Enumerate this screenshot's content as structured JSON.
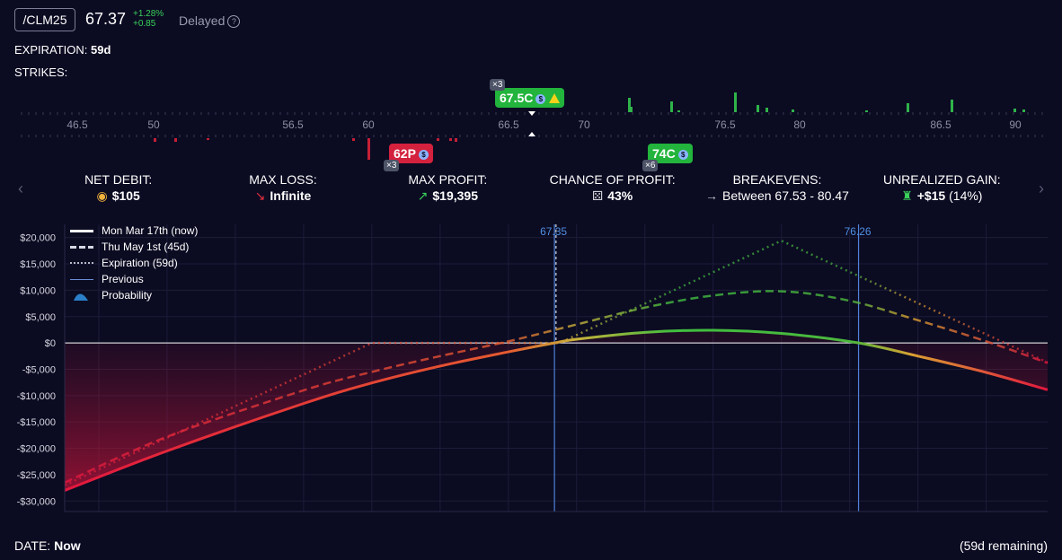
{
  "header": {
    "ticker": "/CLM25",
    "price": "67.37",
    "change_pct": "+1.28%",
    "change_abs": "+0.85",
    "delayed": "Delayed",
    "expiration_label": "EXPIRATION:",
    "expiration_value": "59d",
    "strikes_label": "STRIKES:"
  },
  "strike_ruler": {
    "ticks": [
      "46.5",
      "50",
      "56.5",
      "60",
      "66.5",
      "70",
      "76.5",
      "80",
      "86.5",
      "90"
    ],
    "badges": [
      {
        "label": "67.5C",
        "qty": "×3",
        "type": "call"
      },
      {
        "label": "62P",
        "qty": "×3",
        "type": "put"
      },
      {
        "label": "74C",
        "qty": "×6",
        "type": "call"
      }
    ]
  },
  "stats": [
    {
      "title": "NET DEBIT:",
      "value": "$105",
      "icon": "coins-icon"
    },
    {
      "title": "MAX LOSS:",
      "value": "Infinite",
      "icon": "arrow-down-right-icon"
    },
    {
      "title": "MAX PROFIT:",
      "value": "$19,395",
      "icon": "arrow-up-right-icon"
    },
    {
      "title": "CHANCE OF PROFIT:",
      "value": "43%",
      "icon": "dice-icon"
    },
    {
      "title": "BREAKEVENS:",
      "value": "Between 67.53 - 80.47",
      "icon": "arrow-right-icon"
    },
    {
      "title": "UNREALIZED GAIN:",
      "value": "+$15",
      "value_suffix": "(14%)",
      "icon": "money-bag-icon"
    }
  ],
  "legend": [
    {
      "label": "Mon Mar 17th (now)",
      "style": "solid"
    },
    {
      "label": "Thu May 1st (45d)",
      "style": "dashed"
    },
    {
      "label": "Expiration (59d)",
      "style": "dotted"
    },
    {
      "label": "Previous",
      "style": "line"
    },
    {
      "label": "Probability",
      "style": "area"
    }
  ],
  "chart_data": {
    "type": "line",
    "xlim": [
      53,
      81.8
    ],
    "ylim": [
      -32000,
      22500
    ],
    "x_ticks": [
      54,
      56,
      58,
      60,
      62,
      64,
      66,
      68,
      70,
      72,
      74,
      76,
      78,
      80
    ],
    "y_ticks": [
      20000,
      15000,
      10000,
      5000,
      0,
      -5000,
      -10000,
      -15000,
      -20000,
      -25000,
      -30000
    ],
    "y_tick_labels": [
      "$20,000",
      "$15,000",
      "$10,000",
      "$5,000",
      "$0",
      "-$5,000",
      "-$10,000",
      "-$15,000",
      "-$20,000",
      "-$25,000",
      "-$30,000"
    ],
    "markers": [
      {
        "x": 67.35,
        "label": "67.35"
      },
      {
        "x": 76.26,
        "label": "76.26"
      }
    ],
    "series": [
      {
        "name": "Mon Mar 17th (now)",
        "style": "solid",
        "x": [
          53,
          56,
          60,
          62,
          64,
          66,
          67.35,
          68,
          70,
          72,
          74,
          76.26,
          78,
          80,
          81.8
        ],
        "y": [
          -28000,
          -20500,
          -11500,
          -7600,
          -4400,
          -1700,
          0,
          700,
          2000,
          2400,
          1800,
          0,
          -2500,
          -5600,
          -8900
        ]
      },
      {
        "name": "Thu May 1st (45d)",
        "style": "dashed",
        "x": [
          53,
          56,
          60,
          62,
          64,
          66,
          68,
          70,
          72,
          74,
          76,
          78,
          80,
          81.8
        ],
        "y": [
          -26500,
          -17800,
          -9000,
          -5500,
          -2500,
          300,
          3500,
          6700,
          9000,
          9800,
          8000,
          4300,
          300,
          -3800
        ]
      },
      {
        "name": "Expiration (59d)",
        "style": "dotted",
        "x": [
          53,
          62,
          67.5,
          74,
          81.8
        ],
        "y": [
          -27000,
          0,
          0,
          19395,
          -3700
        ]
      }
    ]
  },
  "footer": {
    "date_label": "DATE:",
    "date_value": "Now",
    "remaining": "(59d remaining)"
  }
}
